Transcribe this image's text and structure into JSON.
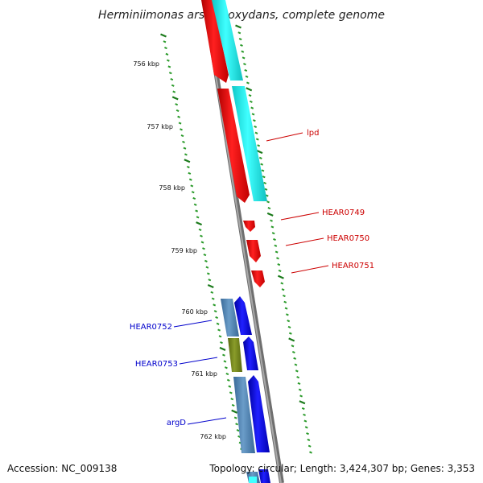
{
  "title": "Herminiimonas arsenicoxydans, complete genome",
  "footer": {
    "accession": "Accession: NC_009138",
    "topology": "Topology: circular; Length: 3,424,307 bp; Genes: 3,353"
  },
  "scale": {
    "unit": "kbp",
    "ticks": [
      "756 kbp",
      "757 kbp",
      "758 kbp",
      "759 kbp",
      "760 kbp",
      "761 kbp",
      "762 kbp"
    ]
  },
  "genes": {
    "forward_color": "#e00000",
    "reverse_color": "#0000cc",
    "labels": [
      {
        "name": "lpd",
        "strand": "forward"
      },
      {
        "name": "HEAR0749",
        "strand": "forward"
      },
      {
        "name": "HEAR0750",
        "strand": "forward"
      },
      {
        "name": "HEAR0751",
        "strand": "forward"
      },
      {
        "name": "HEAR0752",
        "strand": "reverse"
      },
      {
        "name": "HEAR0753",
        "strand": "reverse"
      },
      {
        "name": "argD",
        "strand": "reverse"
      }
    ]
  },
  "colors": {
    "backbone": "#8a8a8a",
    "forward_gene": "#ff1a1a",
    "forward_cds": "#22f0f0",
    "reverse_gene": "#1a1aff",
    "reverse_cds": "#4f86b8",
    "reverse_cds_alt": "#7a8a20",
    "tick_major": "#1b7a1b",
    "tick_minor": "#2a9a2a"
  }
}
